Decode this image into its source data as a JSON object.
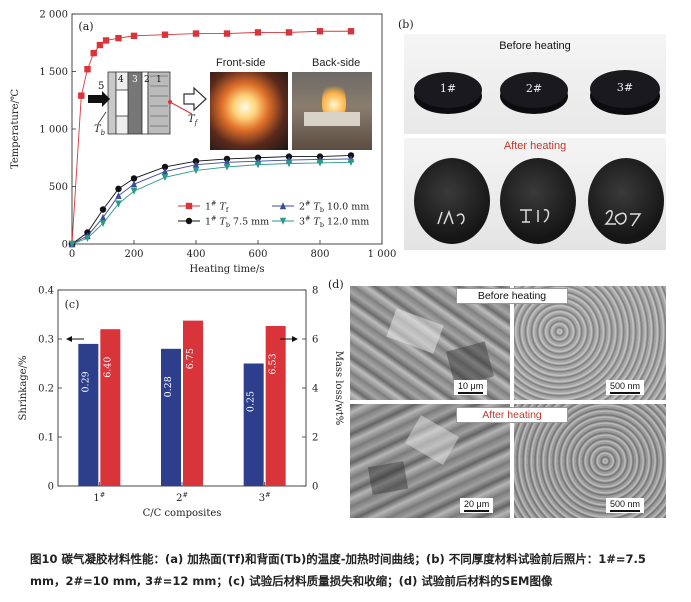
{
  "panel_a": {
    "label": "(a)",
    "inset": {
      "front_label": "Front-side",
      "back_label": "Back-side",
      "tb_label": "T_b",
      "tf_label": "T_f",
      "layers": [
        "5",
        "4",
        "3",
        "2",
        "1"
      ]
    },
    "chart_data": {
      "type": "scatter",
      "xlabel": "Heating time/s",
      "ylabel": "Temperature/℃",
      "xlim": [
        0,
        1000
      ],
      "ylim": [
        0,
        2000
      ],
      "xticks": [
        "0",
        "200",
        "400",
        "600",
        "800",
        "1 000"
      ],
      "yticks": [
        "0",
        "500",
        "1 000",
        "1 500",
        "2 000"
      ],
      "series": [
        {
          "name": "1# Tf",
          "legend": [
            "1",
            "T",
            "f",
            ""
          ],
          "color": "#d9343a",
          "marker": "square",
          "x": [
            0,
            30,
            50,
            70,
            90,
            110,
            150,
            200,
            300,
            400,
            500,
            600,
            700,
            800,
            900
          ],
          "y": [
            0,
            1290,
            1520,
            1660,
            1730,
            1770,
            1790,
            1810,
            1820,
            1830,
            1830,
            1840,
            1840,
            1850,
            1850
          ]
        },
        {
          "name": "1# Tb 7.5 mm",
          "legend": [
            "1",
            "T",
            "b",
            " 7.5 mm"
          ],
          "color": "#111111",
          "marker": "circle",
          "x": [
            0,
            50,
            100,
            150,
            200,
            300,
            400,
            500,
            600,
            700,
            800,
            900
          ],
          "y": [
            0,
            100,
            300,
            480,
            570,
            670,
            720,
            740,
            750,
            760,
            760,
            770
          ]
        },
        {
          "name": "2# Tb 10.0 mm",
          "legend": [
            "2",
            "T",
            "b",
            " 10.0 mm"
          ],
          "color": "#3c4a9a",
          "marker": "triangle",
          "x": [
            0,
            50,
            100,
            150,
            200,
            300,
            400,
            500,
            600,
            700,
            800,
            900
          ],
          "y": [
            0,
            70,
            230,
            420,
            520,
            630,
            690,
            710,
            720,
            730,
            735,
            740
          ]
        },
        {
          "name": "3# Tb 12.0 mm",
          "legend": [
            "3",
            "T",
            "b",
            " 12.0 mm"
          ],
          "color": "#2a9a8a",
          "marker": "triangle-down",
          "x": [
            0,
            50,
            100,
            150,
            200,
            300,
            400,
            500,
            600,
            700,
            800,
            900
          ],
          "y": [
            0,
            50,
            180,
            350,
            460,
            580,
            640,
            670,
            690,
            700,
            705,
            710
          ]
        }
      ]
    }
  },
  "panel_b": {
    "label": "(b)",
    "before_label": "Before heating",
    "after_label": "After heating",
    "disks_before": [
      "1#",
      "2#",
      "3#"
    ],
    "after_label_color": "#c0392b"
  },
  "panel_c": {
    "label": "(c)",
    "chart_data": {
      "type": "bar",
      "xlabel": "C/C composites",
      "ylabel_left": "Shrinkage/%",
      "ylabel_right": "Mass loss/wt%",
      "categories": [
        "1#",
        "2#",
        "3#"
      ],
      "ylim_left": [
        0,
        0.4
      ],
      "ylim_right": [
        0,
        8
      ],
      "yticks_left": [
        "0",
        "0.1",
        "0.2",
        "0.3",
        "0.4"
      ],
      "yticks_right": [
        "0",
        "2",
        "4",
        "6",
        "8"
      ],
      "series": [
        {
          "axis": "left",
          "color": "#2d3f8c",
          "values": [
            0.29,
            0.28,
            0.25
          ],
          "labels": [
            "0.29",
            "0.28",
            "0.25"
          ]
        },
        {
          "axis": "right",
          "color": "#d9343a",
          "values": [
            6.4,
            6.75,
            6.53
          ],
          "labels": [
            "6.40",
            "6.75",
            "6.53"
          ]
        }
      ]
    }
  },
  "panel_d": {
    "label": "(d)",
    "before_label": "Before heating",
    "after_label": "After heating",
    "scale_bars": [
      "10 μm",
      "500 nm",
      "20 μm",
      "500 nm"
    ]
  },
  "caption": "图10 碳气凝胶材料性能：(a) 加热面(Tf)和背面(Tb)的温度-加热时间曲线；(b) 不同厚度材料试验前后照片：1#=7.5 mm，2#=10 mm, 3#=12 mm；(c) 试验后材料质量损失和收缩；(d) 试验前后材料的SEM图像"
}
